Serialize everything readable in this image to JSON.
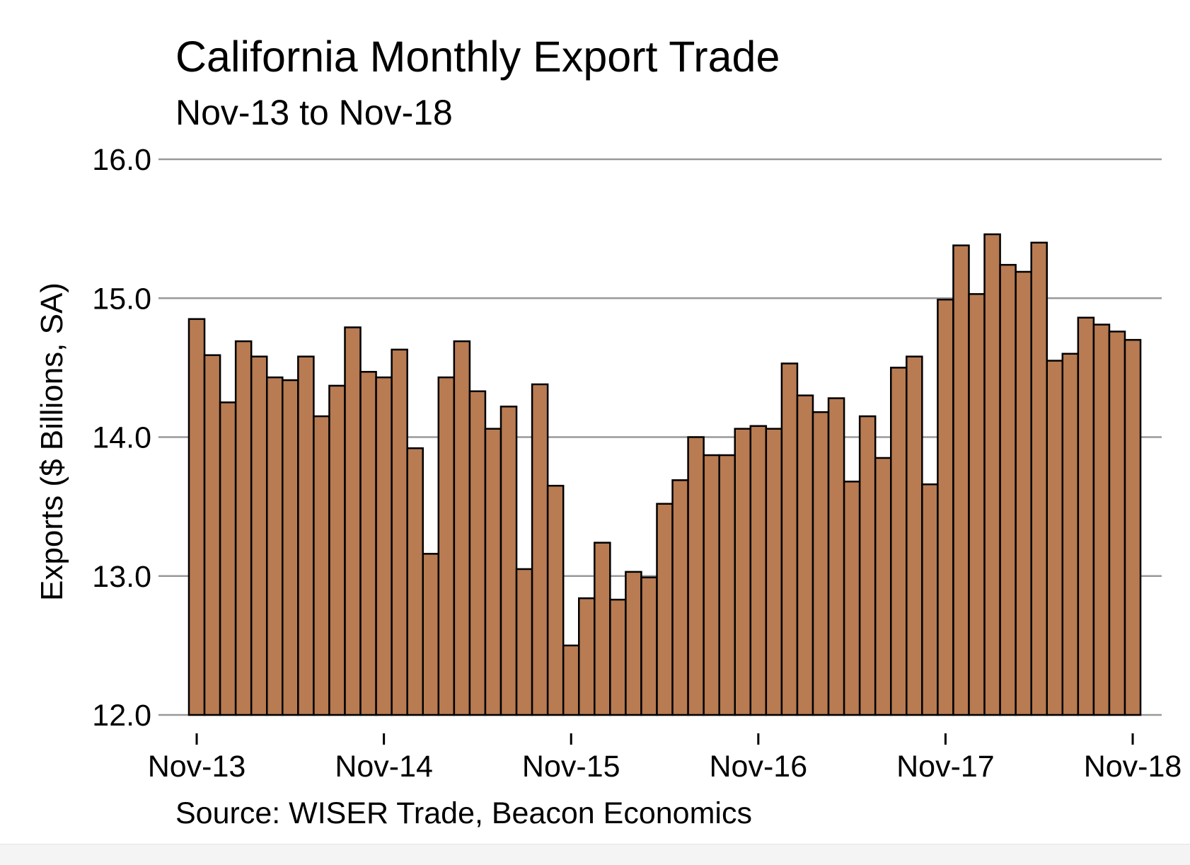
{
  "colors": {
    "bar_fill": "#b87b52",
    "bar_stroke": "#000000",
    "gridline": "#999999",
    "text": "#000000",
    "background": "#ffffff"
  },
  "chart_data": {
    "type": "bar",
    "title": "California Monthly Export Trade",
    "subtitle": "Nov-13 to Nov-18",
    "ylabel": "Exports ($ Billions, SA)",
    "xlabel": "",
    "source": "Source: WISER Trade, Beacon Economics",
    "ylim": [
      12.0,
      16.0
    ],
    "grid": true,
    "yticks": [
      "12.0",
      "13.0",
      "14.0",
      "15.0",
      "16.0"
    ],
    "xticks": [
      "Nov-13",
      "Nov-14",
      "Nov-15",
      "Nov-16",
      "Nov-17",
      "Nov-18"
    ],
    "categories": [
      "Nov-13",
      "Dec-13",
      "Jan-14",
      "Feb-14",
      "Mar-14",
      "Apr-14",
      "May-14",
      "Jun-14",
      "Jul-14",
      "Aug-14",
      "Sep-14",
      "Oct-14",
      "Nov-14",
      "Dec-14",
      "Jan-15",
      "Feb-15",
      "Mar-15",
      "Apr-15",
      "May-15",
      "Jun-15",
      "Jul-15",
      "Aug-15",
      "Sep-15",
      "Oct-15",
      "Nov-15",
      "Dec-15",
      "Jan-16",
      "Feb-16",
      "Mar-16",
      "Apr-16",
      "May-16",
      "Jun-16",
      "Jul-16",
      "Aug-16",
      "Sep-16",
      "Oct-16",
      "Nov-16",
      "Dec-16",
      "Jan-17",
      "Feb-17",
      "Mar-17",
      "Apr-17",
      "May-17",
      "Jun-17",
      "Jul-17",
      "Aug-17",
      "Sep-17",
      "Oct-17",
      "Nov-17",
      "Dec-17",
      "Jan-18",
      "Feb-18",
      "Mar-18",
      "Apr-18",
      "May-18",
      "Jun-18",
      "Jul-18",
      "Aug-18",
      "Sep-18",
      "Oct-18",
      "Nov-18"
    ],
    "values": [
      14.85,
      14.59,
      14.25,
      14.69,
      14.58,
      14.43,
      14.41,
      14.58,
      14.15,
      14.37,
      14.79,
      14.47,
      14.43,
      14.63,
      13.92,
      13.16,
      14.43,
      14.69,
      14.33,
      14.06,
      14.22,
      13.05,
      14.38,
      13.65,
      12.5,
      12.84,
      13.24,
      12.83,
      13.03,
      12.99,
      13.52,
      13.69,
      14.0,
      13.87,
      13.87,
      14.06,
      14.08,
      14.06,
      14.53,
      14.3,
      14.18,
      14.28,
      13.68,
      14.15,
      13.85,
      14.5,
      14.58,
      13.66,
      14.99,
      15.38,
      15.03,
      15.46,
      15.24,
      15.19,
      15.4,
      14.55,
      14.6,
      14.86,
      14.81,
      14.76,
      14.7
    ]
  }
}
